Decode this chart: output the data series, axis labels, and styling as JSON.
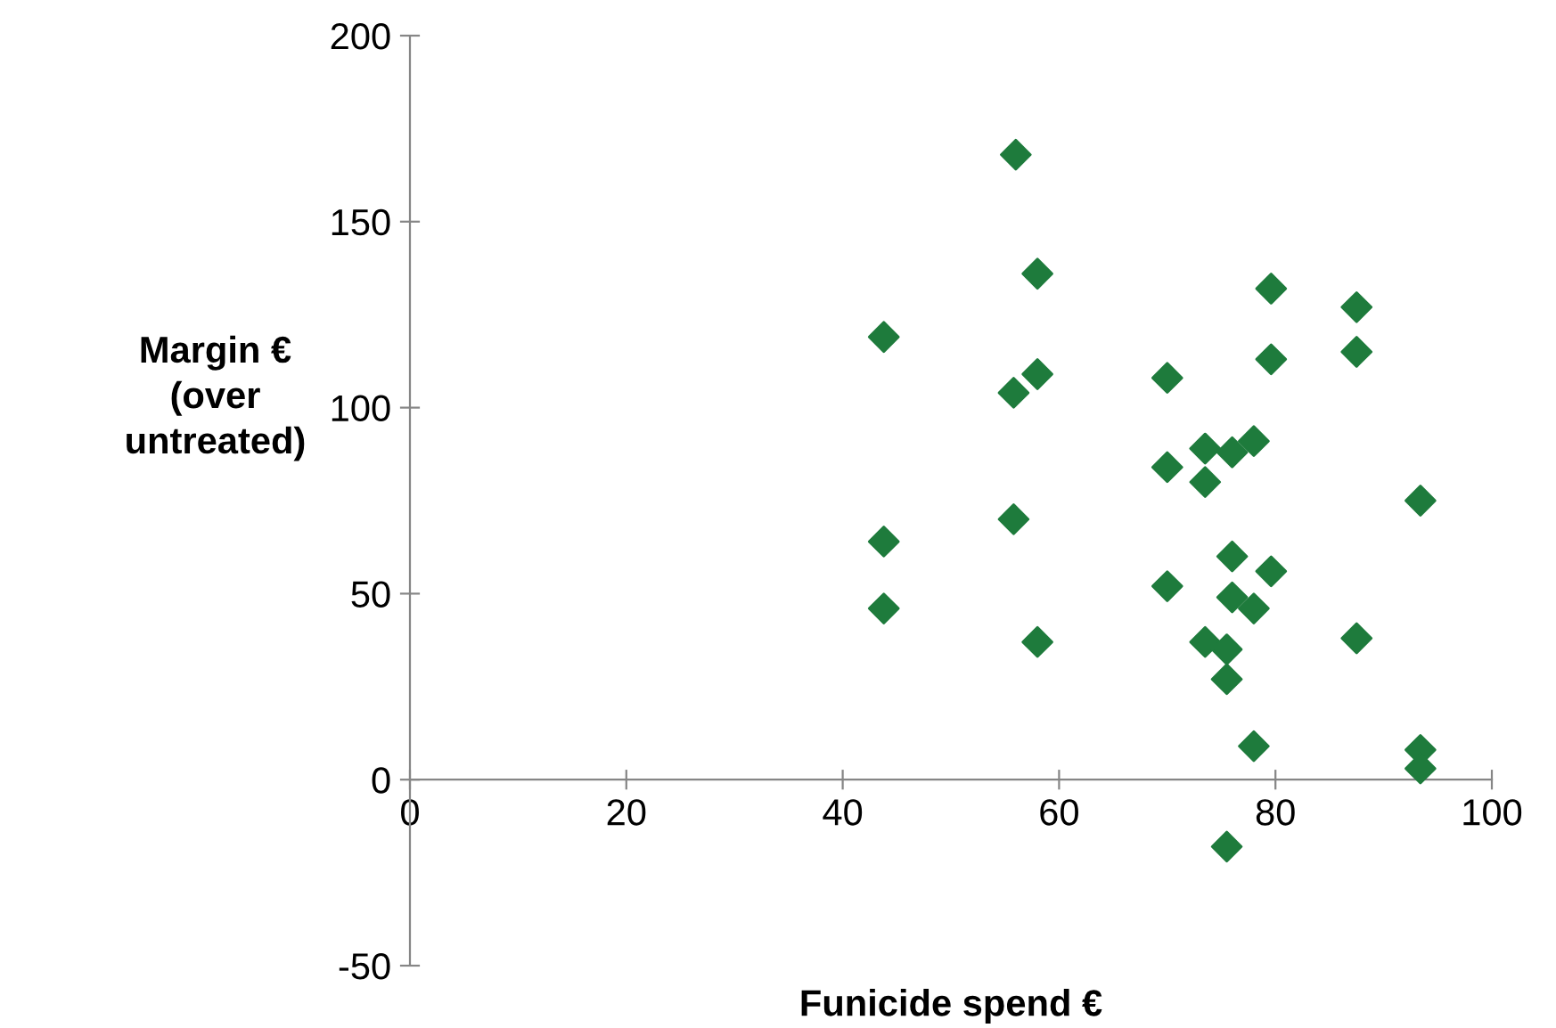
{
  "chart_data": {
    "type": "scatter",
    "xlabel": "Funicide spend €",
    "ylabel": "Margin €\n(over\nuntreated)",
    "marker": "diamond",
    "grid": false,
    "legend": false,
    "xlim": [
      0,
      100
    ],
    "ylim": [
      -50,
      200
    ],
    "xticks": [
      0,
      20,
      40,
      60,
      80,
      100
    ],
    "yticks": [
      -50,
      0,
      50,
      100,
      150,
      200
    ],
    "series": [
      {
        "color": "#1e7b3c",
        "x": [
          43.8,
          43.8,
          43.8,
          56,
          55.8,
          55.8,
          58,
          58,
          58,
          70,
          70,
          70,
          73.5,
          73.5,
          73.5,
          75.5,
          75.5,
          75.5,
          76,
          76,
          76,
          78,
          78,
          78,
          79.6,
          79.6,
          79.6,
          87.5,
          87.5,
          87.5,
          93.4,
          93.4,
          93.4
        ],
        "values": [
          119,
          64,
          46,
          168,
          104,
          70,
          136,
          109,
          37,
          108,
          84,
          52,
          89,
          80,
          37,
          27,
          35,
          -18,
          88,
          60,
          49,
          91,
          46,
          9,
          132,
          113,
          56,
          127,
          115,
          38,
          75,
          8,
          3
        ]
      }
    ]
  }
}
